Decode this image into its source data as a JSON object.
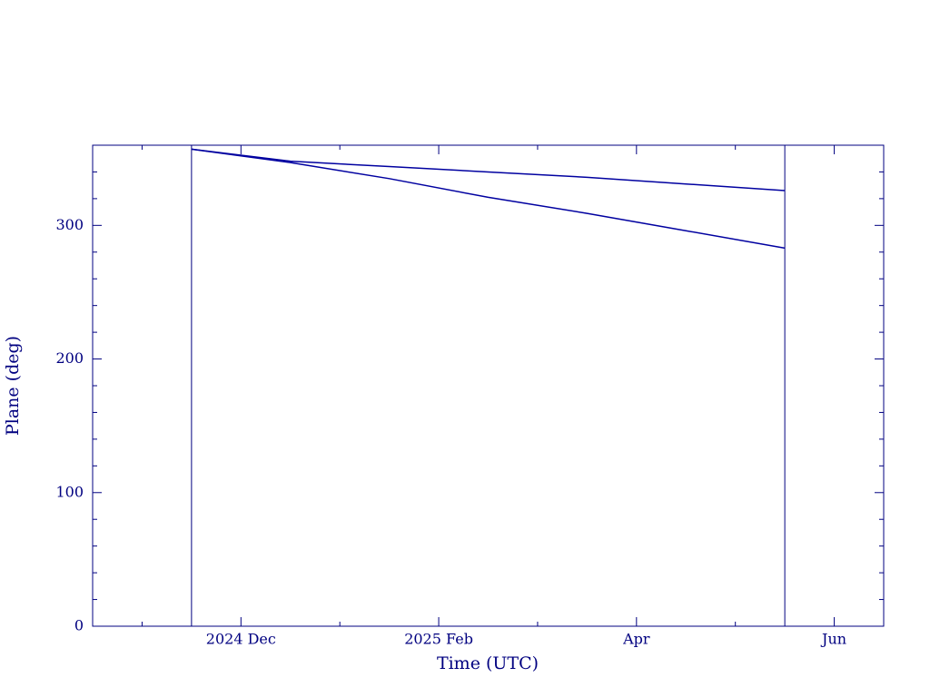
{
  "chart_data": {
    "type": "line",
    "x_label": "Time (UTC)",
    "y_label": "Plane (deg)",
    "x": [
      "2024-11",
      "2024-12",
      "2025-01",
      "2025-02",
      "2025-03",
      "2025-04",
      "2025-05"
    ],
    "series": [
      {
        "color": "#0000a0",
        "values": [
          357,
          348,
          344,
          340,
          336,
          331,
          326
        ]
      },
      {
        "color": "#0000a0",
        "values": [
          357,
          347,
          335,
          321,
          309,
          296,
          283
        ]
      }
    ],
    "vlines": [
      "2024-11",
      "2025-05"
    ],
    "xlim": [
      "2024-10",
      "2025-06"
    ],
    "xticks": [
      {
        "value": "2024-12",
        "label": "2024 Dec"
      },
      {
        "value": "2025-02",
        "label": "2025 Feb"
      },
      {
        "value": "2025-04",
        "label": "Apr"
      },
      {
        "value": "2025-06",
        "label": "Jun"
      }
    ],
    "xminorticks": [
      "2024-11",
      "2025-01",
      "2025-03",
      "2025-05"
    ],
    "ylim": [
      0,
      360
    ],
    "yticks": [
      0,
      100,
      200,
      300
    ],
    "yminorticks": [
      20,
      40,
      60,
      80,
      120,
      140,
      160,
      180,
      220,
      240,
      260,
      280,
      320,
      340
    ],
    "axis_color": "#000080"
  }
}
